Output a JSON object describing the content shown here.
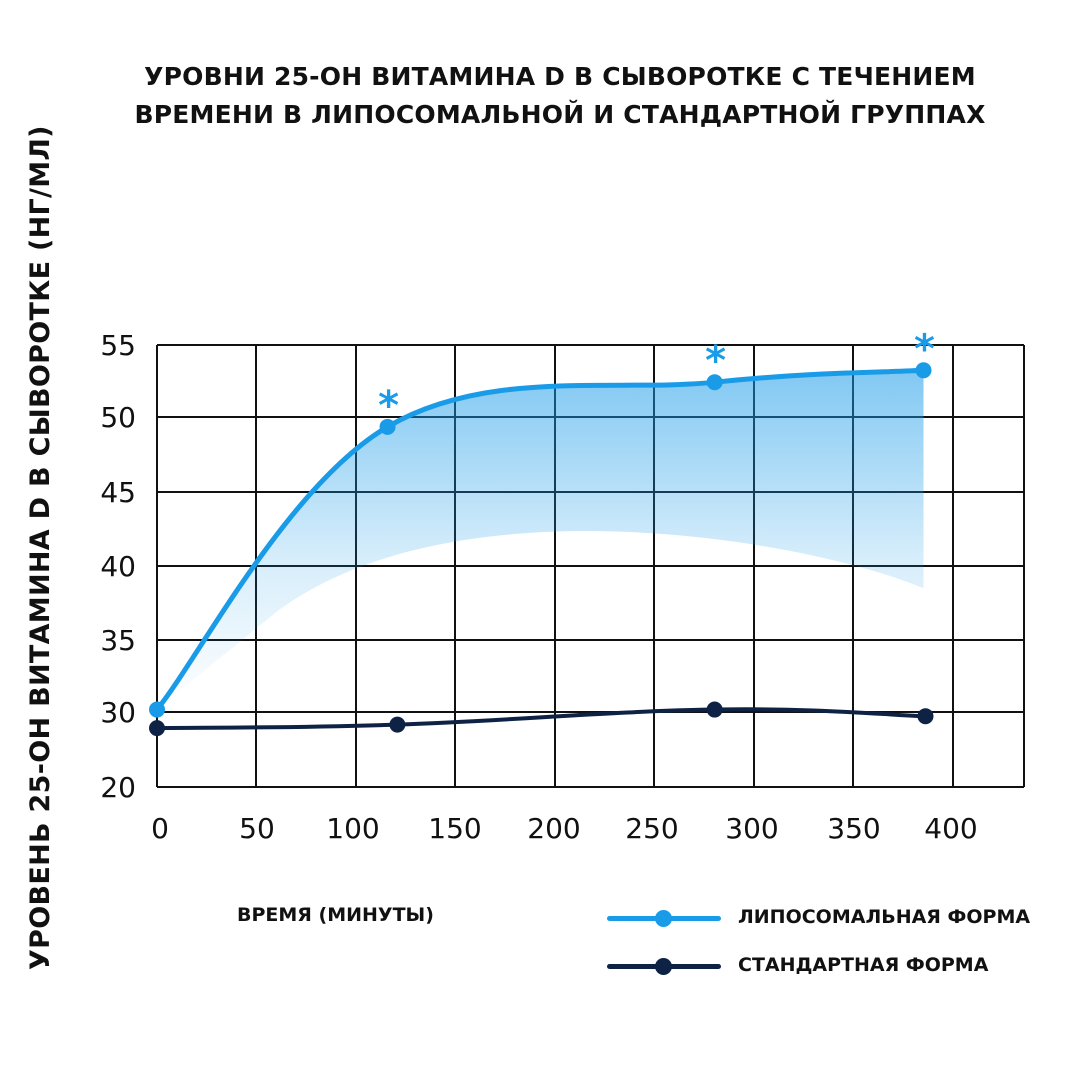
{
  "chart_data": {
    "type": "line",
    "title_lines": [
      "УРОВНИ 25-OH ВИТАМИНА D В СЫВОРОТКЕ С ТЕЧЕНИЕМ",
      "ВРЕМЕНИ В ЛИПОСОМАЛЬНОЙ И СТАНДАРТНОЙ ГРУППАХ"
    ],
    "xlabel": "ВРЕМЯ (МИНУТЫ)",
    "ylabel": "УРОВЕНЬ 25-OH ВИТАМИНА D  В СЫВОРОТКЕ (НГ/МЛ)",
    "x_ticks": [
      "0",
      "50",
      "100",
      "150",
      "200",
      "250",
      "300",
      "350",
      "400"
    ],
    "y_ticks": [
      "55",
      "50",
      "45",
      "40",
      "35",
      "30",
      "20"
    ],
    "xlim": [
      0,
      440
    ],
    "grid": true,
    "legend_position": "bottom-right",
    "series": [
      {
        "name": "ЛИПОСОМАЛЬНАЯ ФОРМА",
        "color": "#1a9be8",
        "x": [
          0,
          117,
          283,
          389
        ],
        "y": [
          30.5,
          49.5,
          52.5,
          53.3
        ],
        "significant": [
          false,
          true,
          true,
          true
        ],
        "marker_label": "*"
      },
      {
        "name": "СТАНДАРТНАЯ ФОРМА",
        "color": "#0d2244",
        "x": [
          0,
          122,
          283,
          390
        ],
        "y": [
          27.7,
          28.2,
          30.5,
          29.4
        ]
      }
    ]
  }
}
